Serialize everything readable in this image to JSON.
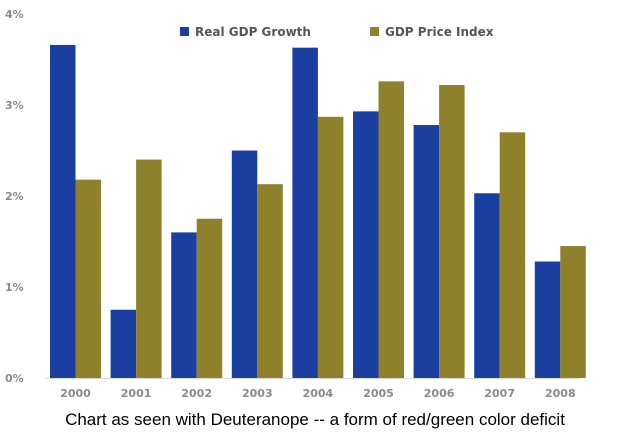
{
  "chart_data": {
    "type": "bar",
    "categories": [
      "2000",
      "2001",
      "2002",
      "2003",
      "2004",
      "2005",
      "2006",
      "2007",
      "2008"
    ],
    "series": [
      {
        "name": "Real GDP Growth",
        "color": "#1a3fa0",
        "values": [
          3.66,
          0.75,
          1.6,
          2.5,
          3.63,
          2.93,
          2.78,
          2.03,
          1.28
        ]
      },
      {
        "name": "GDP Price Index",
        "color": "#8f812c",
        "values": [
          2.18,
          2.4,
          1.75,
          2.13,
          2.87,
          3.26,
          3.22,
          2.7,
          1.45
        ]
      }
    ],
    "y_ticks": [
      "0%",
      "1%",
      "2%",
      "3%",
      "4%"
    ],
    "ylim": [
      0,
      4
    ],
    "grid": false,
    "legend_position": "top-center"
  },
  "caption": "Chart as seen with Deuteranope -- a form of red/green color deficit"
}
